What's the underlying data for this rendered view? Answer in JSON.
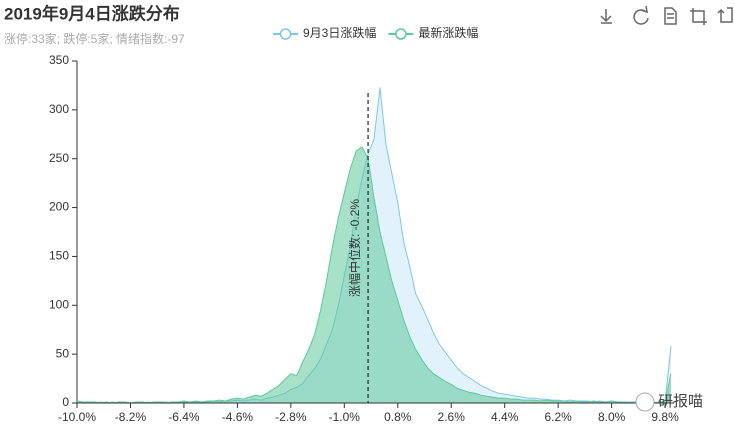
{
  "chart_data": {
    "type": "area",
    "title": "2019年9月4日涨跌分布",
    "subtitle": "涨停:33家; 跌停:5家; 情绪指数:-97",
    "watermark": "研报喵",
    "x": [
      -10,
      -9.8,
      -9.6,
      -9.4,
      -9.2,
      -9,
      -8.8,
      -8.6,
      -8.4,
      -8.2,
      -8,
      -7.8,
      -7.6,
      -7.4,
      -7.2,
      -7,
      -6.8,
      -6.6,
      -6.4,
      -6.2,
      -6,
      -5.8,
      -5.6,
      -5.4,
      -5.2,
      -5,
      -4.8,
      -4.6,
      -4.4,
      -4.2,
      -4,
      -3.8,
      -3.6,
      -3.4,
      -3.2,
      -3,
      -2.8,
      -2.6,
      -2.4,
      -2.2,
      -2,
      -1.8,
      -1.6,
      -1.4,
      -1.2,
      -1,
      -0.8,
      -0.6,
      -0.4,
      -0.2,
      0,
      0.2,
      0.4,
      0.6,
      0.8,
      1,
      1.2,
      1.4,
      1.6,
      1.8,
      2,
      2.2,
      2.4,
      2.6,
      2.8,
      3,
      3.2,
      3.4,
      3.6,
      3.8,
      4,
      4.2,
      4.4,
      4.6,
      4.8,
      5,
      5.2,
      5.4,
      5.6,
      5.8,
      6,
      6.2,
      6.4,
      6.6,
      6.8,
      7,
      7.2,
      7.4,
      7.6,
      7.8,
      8,
      8.2,
      8.4,
      8.6,
      8.8,
      9,
      9.2,
      9.4,
      9.6,
      9.8,
      10
    ],
    "series": [
      {
        "name": "9月3日涨跌幅",
        "color": "#7cc6ec",
        "values": [
          2,
          1,
          1,
          0,
          1,
          0,
          1,
          0,
          1,
          0,
          1,
          0,
          1,
          0,
          1,
          1,
          0,
          1,
          1,
          0,
          1,
          1,
          1,
          2,
          1,
          2,
          2,
          3,
          2,
          3,
          4,
          3,
          5,
          6,
          8,
          10,
          14,
          16,
          20,
          28,
          35,
          45,
          60,
          75,
          100,
          130,
          160,
          200,
          230,
          255,
          270,
          323,
          265,
          235,
          205,
          165,
          140,
          112,
          100,
          86,
          72,
          60,
          52,
          44,
          36,
          30,
          26,
          22,
          18,
          15,
          12,
          10,
          9,
          8,
          7,
          6,
          5,
          5,
          4,
          4,
          3,
          3,
          2,
          3,
          2,
          2,
          2,
          1,
          2,
          1,
          2,
          1,
          1,
          1,
          1,
          0,
          1,
          0,
          1,
          2,
          58
        ]
      },
      {
        "name": "最新涨跌幅",
        "color": "#5cc99a",
        "values": [
          2,
          1,
          1,
          1,
          0,
          1,
          0,
          1,
          1,
          0,
          1,
          1,
          0,
          1,
          1,
          0,
          1,
          1,
          2,
          1,
          2,
          1,
          2,
          2,
          3,
          2,
          4,
          5,
          4,
          6,
          8,
          7,
          10,
          14,
          18,
          24,
          30,
          28,
          42,
          55,
          70,
          95,
          125,
          160,
          190,
          215,
          240,
          258,
          262,
          250,
          210,
          175,
          150,
          125,
          105,
          85,
          68,
          55,
          45,
          36,
          30,
          26,
          22,
          19,
          15,
          13,
          11,
          10,
          8,
          7,
          6,
          5,
          5,
          4,
          4,
          3,
          3,
          3,
          2,
          3,
          2,
          2,
          2,
          1,
          2,
          1,
          1,
          2,
          1,
          1,
          2,
          1,
          1,
          0,
          1,
          1,
          0,
          1,
          0,
          2,
          30
        ]
      }
    ],
    "median": {
      "x": -0.2,
      "label": "涨幅中位数: -0.2%"
    },
    "xlim": [
      -10,
      10.1
    ],
    "xticks": [
      {
        "value": -10,
        "label": "-10.0%"
      },
      {
        "value": -8.2,
        "label": "-8.2%"
      },
      {
        "value": -6.4,
        "label": "-6.4%"
      },
      {
        "value": -4.6,
        "label": "-4.6%"
      },
      {
        "value": -2.8,
        "label": "-2.8%"
      },
      {
        "value": -1,
        "label": "-1.0%"
      },
      {
        "value": 0.8,
        "label": "0.8%"
      },
      {
        "value": 2.6,
        "label": "2.6%"
      },
      {
        "value": 4.4,
        "label": "4.4%"
      },
      {
        "value": 6.2,
        "label": "6.2%"
      },
      {
        "value": 8,
        "label": "8.0%"
      },
      {
        "value": 9.8,
        "label": "9.8%"
      }
    ],
    "ylim": [
      0,
      350
    ],
    "yticks": [
      0,
      50,
      100,
      150,
      200,
      250,
      300,
      350
    ],
    "grid": false
  }
}
